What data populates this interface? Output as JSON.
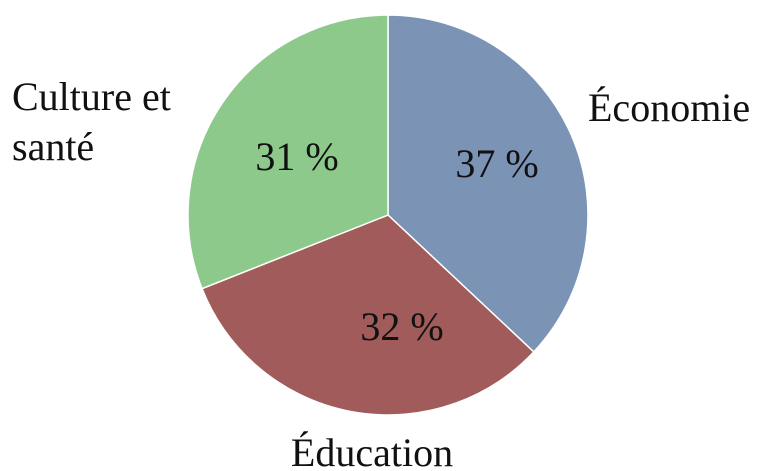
{
  "chart_data": {
    "type": "pie",
    "categories": [
      "Économie",
      "Éducation",
      "Culture et santé"
    ],
    "values": [
      37,
      32,
      31
    ],
    "value_labels": [
      "37 %",
      "32 %",
      "31 %"
    ],
    "colors": [
      "#7B93B4",
      "#A15B5B",
      "#8DC98A"
    ],
    "start": "12 o'clock",
    "direction": "clockwise",
    "legend": "none"
  }
}
